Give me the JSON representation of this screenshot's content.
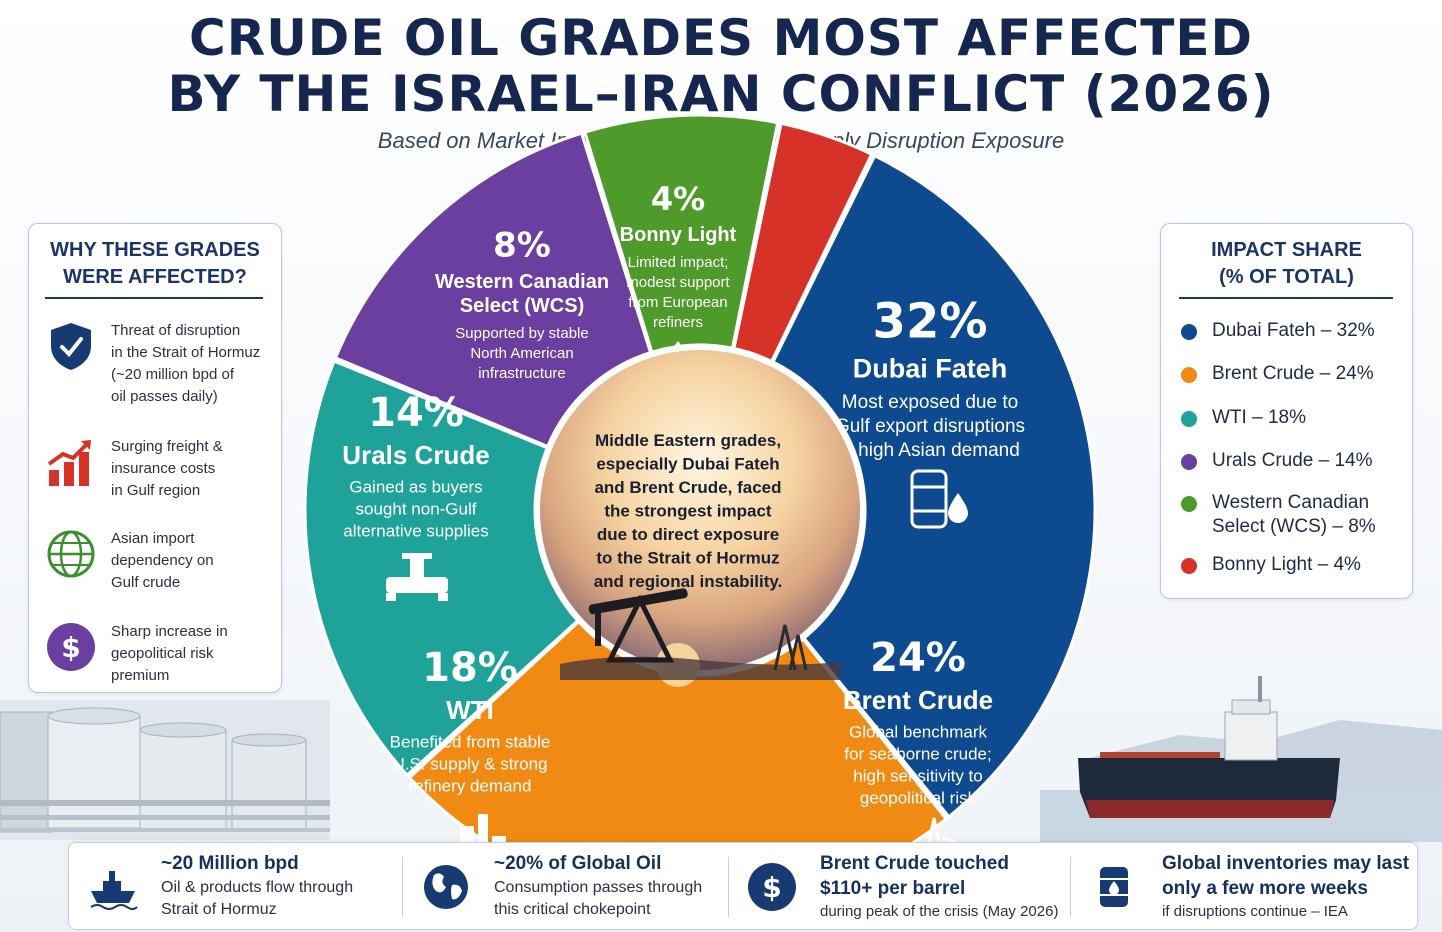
{
  "title_line1": "CRUDE OIL GRADES MOST AFFECTED",
  "title_line2": "BY THE ISRAEL–IRAN CONFLICT (2026)",
  "subtitle": "Based on Market Impact, Price Volatility & Supply Disruption Exposure",
  "left_panel": {
    "title_line1": "WHY THESE GRADES",
    "title_line2": "WERE AFFECTED?",
    "reasons": [
      {
        "icon": "shield-check-icon",
        "lines": [
          "Threat of disruption",
          "in the Strait of Hormuz",
          "(~20 million bpd of",
          "oil passes daily)"
        ]
      },
      {
        "icon": "rising-chart-icon",
        "lines": [
          "Surging freight &",
          "insurance costs",
          "in Gulf region"
        ]
      },
      {
        "icon": "globe-icon",
        "lines": [
          "Asian import",
          "dependency on",
          "Gulf crude"
        ]
      },
      {
        "icon": "dollar-icon",
        "lines": [
          "Sharp increase in",
          "geopolitical risk",
          "premium"
        ]
      }
    ]
  },
  "right_panel": {
    "title_line1": "IMPACT SHARE",
    "title_line2": "(% OF TOTAL)",
    "legend": [
      {
        "lines": [
          "Dubai Fateh – 32%"
        ],
        "color": "#0d4a8f"
      },
      {
        "lines": [
          "Brent Crude – 24%"
        ],
        "color": "#f08a12"
      },
      {
        "lines": [
          "WTI – 18%"
        ],
        "color": "#1ea29a"
      },
      {
        "lines": [
          "Urals Crude – 14%"
        ],
        "color": "#6b3fa0"
      },
      {
        "lines": [
          "Western Canadian",
          "Select (WCS) – 8%"
        ],
        "color": "#4e9a2b"
      },
      {
        "lines": [
          "Bonny Light – 4%"
        ],
        "color": "#d63227"
      }
    ]
  },
  "chart_data": {
    "type": "pie",
    "style": "donut",
    "slices": [
      {
        "label": "Dubai Fateh",
        "value": 32,
        "pct_label": "32%",
        "color": "#0d4a8f",
        "icon": "oil-barrel-icon",
        "desc": [
          "Most exposed due to",
          "Gulf export disruptions",
          "& high Asian demand"
        ]
      },
      {
        "label": "Brent Crude",
        "value": 24,
        "pct_label": "24%",
        "color": "#f08a12",
        "icon": "offshore-rig-icon",
        "desc": [
          "Global benchmark",
          "for seaborne crude;",
          "high sensitivity to",
          "geopolitical risk"
        ]
      },
      {
        "label": "WTI",
        "value": 18,
        "pct_label": "18%",
        "color": "#1ea29a",
        "icon": "refinery-icon",
        "desc": [
          "Benefited from stable",
          "U.S. supply & strong",
          "refinery demand"
        ]
      },
      {
        "label": "Urals Crude",
        "value": 14,
        "pct_label": "14%",
        "color": "#6b3fa0",
        "icon": "pipeline-valve-icon",
        "desc": [
          "Gained as buyers",
          "sought non-Gulf",
          "alternative supplies"
        ]
      },
      {
        "label_lines": [
          "Western Canadian",
          "Select (WCS)"
        ],
        "label": "Western Canadian Select (WCS)",
        "value": 8,
        "pct_label": "8%",
        "color": "#4e9a2b",
        "icon": "",
        "desc": [
          "Supported by stable",
          "North American",
          "infrastructure"
        ]
      },
      {
        "label": "Bonny Light",
        "value": 4,
        "pct_label": "4%",
        "color": "#d63227",
        "icon": "oil-drop-icon",
        "desc": [
          "Limited impact;",
          "modest support",
          "from European",
          "refiners"
        ]
      }
    ],
    "center_text": [
      "Middle Eastern grades,",
      "especially Dubai Fateh",
      "and Brent Crude, faced",
      "the strongest impact",
      "due to direct exposure",
      "to the Strait of Hormuz",
      "and regional instability."
    ]
  },
  "bottom_stats": [
    {
      "icon": "tanker-ship-icon",
      "head": "~20 Million bpd",
      "line2": "Oil & products flow through",
      "line3": "Strait of Hormuz"
    },
    {
      "icon": "globe-icon",
      "head": "~20% of Global Oil",
      "line2": "Consumption passes through",
      "line3": "this critical chokepoint"
    },
    {
      "icon": "dollar-icon",
      "head": "Brent Crude touched",
      "line2": "$110+ per barrel",
      "line3": "during peak of the crisis (May 2026)"
    },
    {
      "icon": "oil-barrel-icon",
      "head": "Global inventories may last",
      "line2": "only a few more weeks",
      "line3": "if disruptions continue – IEA"
    }
  ]
}
